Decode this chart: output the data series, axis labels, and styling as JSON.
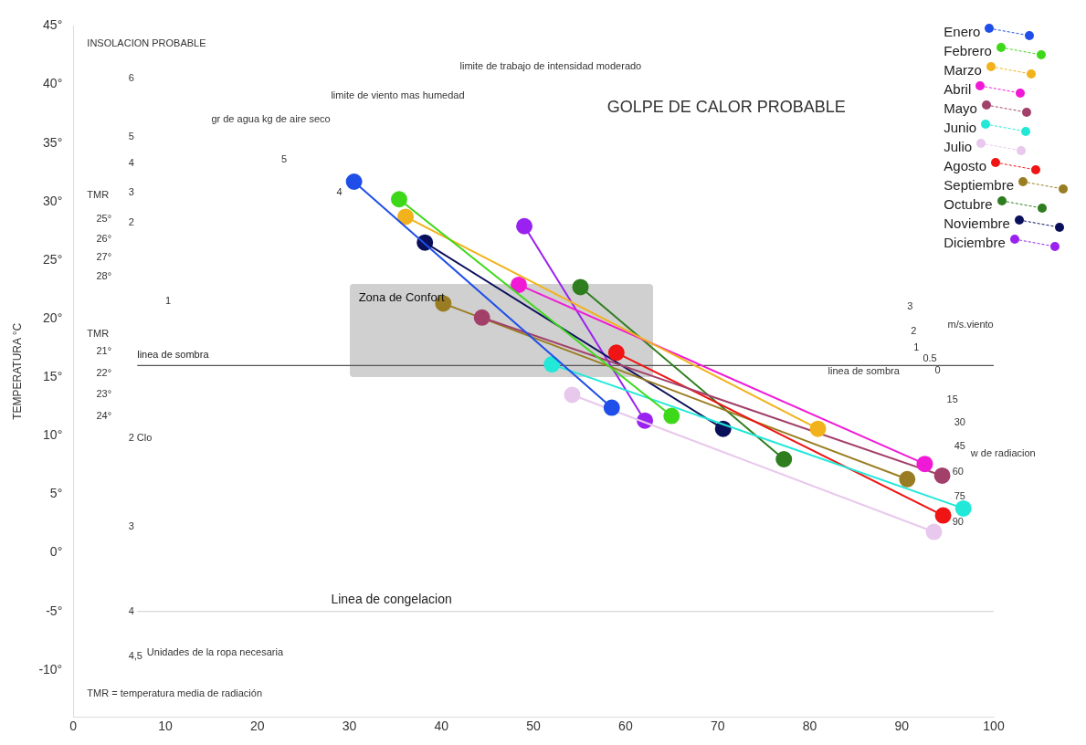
{
  "chart_data": {
    "type": "line",
    "ylabel": "TEMPERATURA °C",
    "xlim": [
      0,
      100
    ],
    "xticks": [
      0,
      10,
      20,
      30,
      40,
      50,
      60,
      70,
      80,
      90,
      100
    ],
    "ylim": [
      -14,
      45
    ],
    "yticks": [
      {
        "value": -10,
        "label": "-10°"
      },
      {
        "value": -5,
        "label": "-5°"
      },
      {
        "value": 0,
        "label": "0°"
      },
      {
        "value": 5,
        "label": "5°"
      },
      {
        "value": 10,
        "label": "10°"
      },
      {
        "value": 15,
        "label": "15°"
      },
      {
        "value": 20,
        "label": "20°"
      },
      {
        "value": 25,
        "label": "25°"
      },
      {
        "value": 30,
        "label": "30°"
      },
      {
        "value": 35,
        "label": "35°"
      },
      {
        "value": 40,
        "label": "40°"
      },
      {
        "value": 45,
        "label": "45°"
      }
    ],
    "grid": false,
    "legend": "top right",
    "marker": "circle",
    "line_style": "solid",
    "series": [
      {
        "name": "Enero",
        "color": "#1f4fe8",
        "x": [
          30.5,
          58.5
        ],
        "values": [
          31.7,
          12.4
        ]
      },
      {
        "name": "Febrero",
        "color": "#3ed81a",
        "x": [
          35.4,
          65.0
        ],
        "values": [
          30.2,
          11.7
        ]
      },
      {
        "name": "Marzo",
        "color": "#f2b21c",
        "x": [
          36.1,
          80.9
        ],
        "values": [
          28.7,
          10.6
        ]
      },
      {
        "name": "Abril",
        "color": "#f01ad6",
        "x": [
          48.4,
          92.5
        ],
        "values": [
          22.9,
          7.6
        ]
      },
      {
        "name": "Mayo",
        "color": "#a3406a",
        "x": [
          44.4,
          94.4
        ],
        "values": [
          20.1,
          6.6
        ]
      },
      {
        "name": "Junio",
        "color": "#22e8d8",
        "x": [
          52.0,
          96.7
        ],
        "values": [
          16.1,
          3.8
        ]
      },
      {
        "name": "Julio",
        "color": "#e8c8ec",
        "x": [
          54.2,
          93.5
        ],
        "values": [
          13.5,
          1.8
        ]
      },
      {
        "name": "Agosto",
        "color": "#f01414",
        "x": [
          59.0,
          94.5
        ],
        "values": [
          17.1,
          3.2
        ]
      },
      {
        "name": "Septiembre",
        "color": "#9a7d22",
        "x": [
          40.2,
          90.6
        ],
        "values": [
          21.3,
          6.3
        ]
      },
      {
        "name": "Octubre",
        "color": "#2e7d1e",
        "x": [
          55.1,
          77.2
        ],
        "values": [
          22.7,
          8.0
        ]
      },
      {
        "name": "Noviembre",
        "color": "#0a0f5a",
        "x": [
          38.2,
          70.6
        ],
        "values": [
          26.5,
          10.6
        ]
      },
      {
        "name": "Diciembre",
        "color": "#9a22f0",
        "x": [
          49.0,
          62.1
        ],
        "values": [
          27.9,
          11.3
        ]
      }
    ],
    "ref_lines": [
      {
        "axis": "y",
        "value": 16,
        "label": "linea de sombra",
        "color": "#555555"
      },
      {
        "axis": "y",
        "value": -5,
        "label": "Linea de congelacion",
        "color": "#cccccc"
      }
    ],
    "annotations": [
      "INSOLACION PROBABLE",
      "GOLPE DE CALOR PROBABLE",
      "limite de trabajo de intensidad moderado",
      "limite de viento mas humedad",
      "gr de agua kg de aire seco",
      "6",
      "5",
      "4",
      "3",
      "2",
      "1",
      "5",
      "4",
      "TMR",
      "25°",
      "26°",
      "27°",
      "28°",
      "TMR",
      "21°",
      "22°",
      "23°",
      "24°",
      "2 Clo",
      "3",
      "4",
      "4,5",
      "Unidades de la ropa necesaria",
      "linea de sombra",
      "m/s.viento",
      "3",
      "2",
      "1",
      "0.5",
      "0",
      "15",
      "30",
      "45",
      "60",
      "75",
      "90",
      "w de radiacion",
      "TMR = temperatura media de radiación",
      "Zona de Confort"
    ]
  }
}
